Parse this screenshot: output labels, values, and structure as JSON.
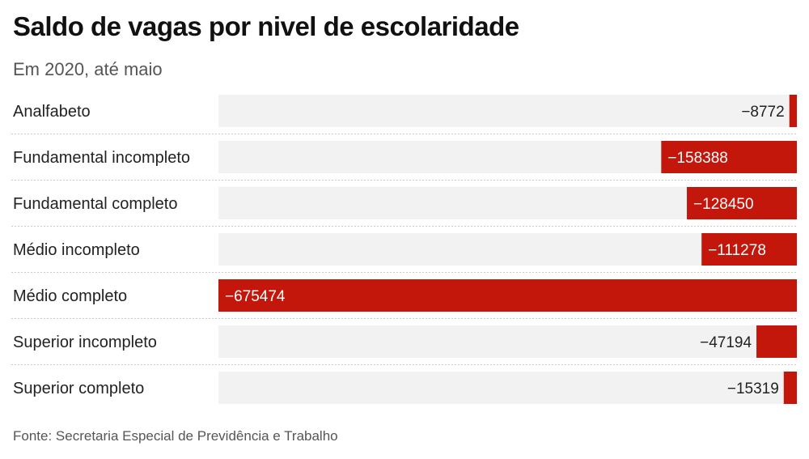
{
  "title": "Saldo de vagas por nivel de escolaridade",
  "subtitle": "Em 2020, até maio",
  "source": "Fonte: Secretaria Especial de Previdência e Trabalho",
  "colors": {
    "bar": "#c4170c",
    "track": "#f2f2f2",
    "label_dark": "#222222",
    "label_light": "#ffffff",
    "separator": "#cccccc"
  },
  "chart_data": {
    "type": "bar",
    "orientation": "horizontal",
    "categories": [
      "Analfabeto",
      "Fundamental incompleto",
      "Fundamental completo",
      "Médio incompleto",
      "Médio completo",
      "Superior incompleto",
      "Superior completo"
    ],
    "values": [
      -8772,
      -158388,
      -128450,
      -111278,
      -675474,
      -47194,
      -15319
    ],
    "value_labels": [
      "−8772",
      "−158388",
      "−128450",
      "−111278",
      "−675474",
      "−47194",
      "−15319"
    ],
    "xlim": [
      -675474,
      0
    ],
    "grid": false,
    "legend": "none"
  }
}
